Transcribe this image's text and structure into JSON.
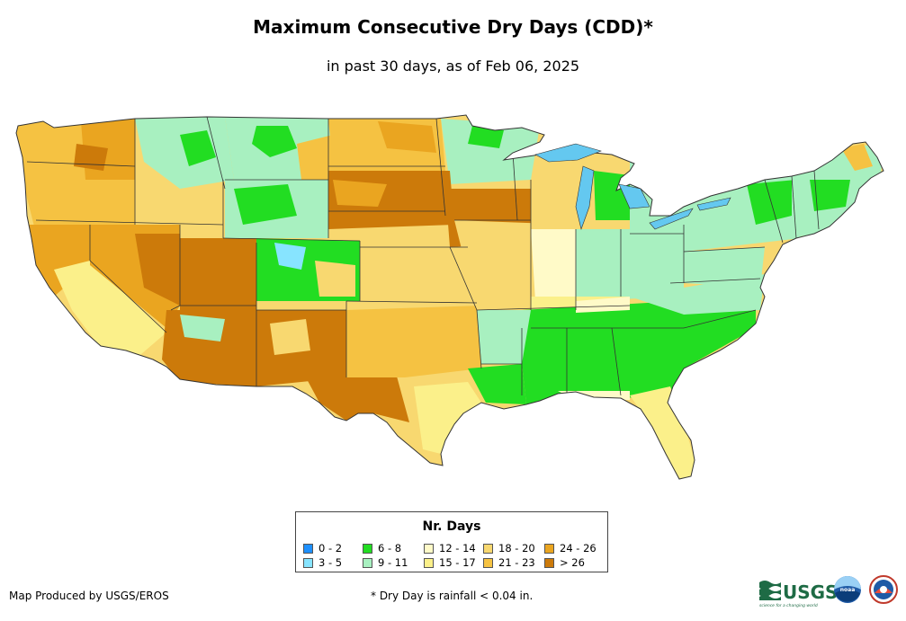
{
  "title": "Maximum Consecutive Dry Days (CDD)*",
  "subtitle": "in past 30 days, as of Feb 06, 2025",
  "legend": {
    "title": "Nr. Days",
    "items": [
      {
        "label": "0 - 2",
        "color": "#1e90ff"
      },
      {
        "label": "3 - 5",
        "color": "#87e4ff"
      },
      {
        "label": "6 - 8",
        "color": "#22dd22"
      },
      {
        "label": "9 - 11",
        "color": "#a8f0c0"
      },
      {
        "label": "12 - 14",
        "color": "#fffac8"
      },
      {
        "label": "15 - 17",
        "color": "#fbf08a"
      },
      {
        "label": "18 - 20",
        "color": "#f8d870"
      },
      {
        "label": "21 - 23",
        "color": "#f5c242"
      },
      {
        "label": "24 - 26",
        "color": "#eaa520"
      },
      {
        "label": "> 26",
        "color": "#cc7a0a"
      }
    ]
  },
  "credit": "Map Produced by USGS/EROS",
  "footnote": "* Dry Day is rainfall < 0.04 in.",
  "logos": {
    "usgs": "USGS",
    "usgs_tagline": "science for a changing world",
    "noaa": "noaa"
  }
}
